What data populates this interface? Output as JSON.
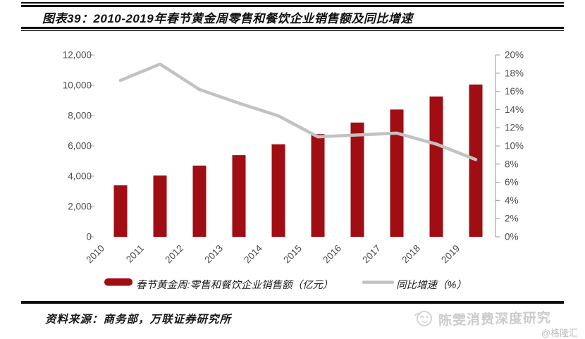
{
  "header": {
    "title": "图表39：2010-2019年春节黄金周零售和餐饮企业销售额及同比增速"
  },
  "chart_data": {
    "type": "bar+line combo",
    "categories": [
      "2010",
      "2011",
      "2012",
      "2013",
      "2014",
      "2015",
      "2016",
      "2017",
      "2018",
      "2019"
    ],
    "series": [
      {
        "name": "春节黄金周:零售和餐饮企业销售额（亿元）",
        "type": "bar",
        "axis": "left",
        "color": "#a00d12",
        "values": [
          3400,
          4045,
          4700,
          5390,
          6107,
          6780,
          7540,
          8400,
          9260,
          10050
        ]
      },
      {
        "name": "同比增速（%）",
        "type": "line",
        "axis": "right",
        "color": "#c2c2c2",
        "values": [
          17.2,
          19.0,
          16.2,
          14.7,
          13.3,
          11.0,
          11.2,
          11.4,
          10.2,
          8.5
        ]
      }
    ],
    "left_axis": {
      "min": 0,
      "max": 12000,
      "step": 2000,
      "tick_labels": [
        "0",
        "2,000",
        "4,000",
        "6,000",
        "8,000",
        "10,000",
        "12,000"
      ]
    },
    "right_axis": {
      "min": 0,
      "max": 20,
      "step": 2,
      "tick_labels": [
        "0%",
        "2%",
        "4%",
        "6%",
        "8%",
        "10%",
        "12%",
        "14%",
        "16%",
        "18%",
        "20%"
      ]
    },
    "grid": "off",
    "legend_position": "bottom"
  },
  "style": {
    "axis_text_color": "#4d4d4d",
    "axis_line_color": "#a6a6a6",
    "legend_text_color": "#1a1a1a"
  },
  "footer": {
    "source": "资料来源：商务部，万联证券研究所"
  },
  "watermark": {
    "icon": "winking-face-icon",
    "text": "陈雯消费深度研究",
    "handle": "@格隆汇"
  }
}
